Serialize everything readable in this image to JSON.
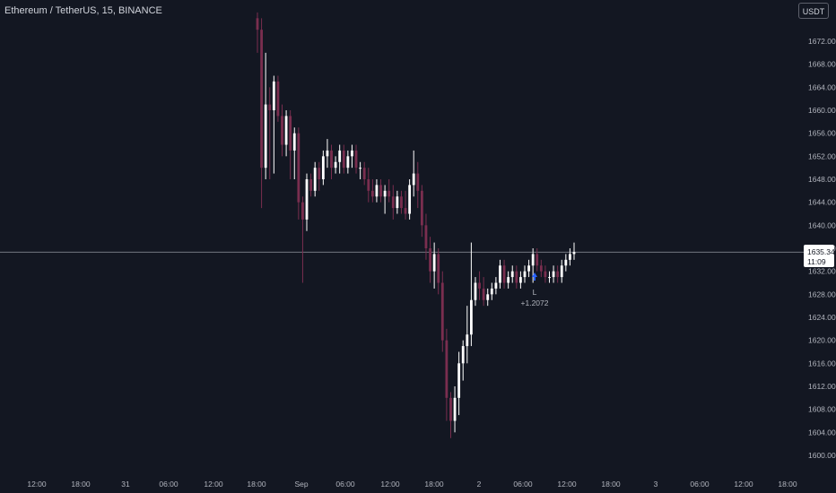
{
  "header": {
    "symbol_title": "Ethereum / TetherUS, 15, BINANCE",
    "currency_button": "USDT"
  },
  "price_axis": {
    "ticks": [
      1672,
      1668,
      1664,
      1660,
      1656,
      1652,
      1648,
      1644,
      1640,
      1636,
      1632,
      1628,
      1624,
      1620,
      1616,
      1612,
      1608,
      1604,
      1600
    ],
    "tick_labels": [
      "1672.00",
      "1668.00",
      "1664.00",
      "1660.00",
      "1656.00",
      "1652.00",
      "1648.00",
      "1644.00",
      "1640.00",
      "1636.00",
      "1632.00",
      "1628.00",
      "1624.00",
      "1620.00",
      "1616.00",
      "1612.00",
      "1608.00",
      "1604.00",
      "1600.00"
    ],
    "current_price_label": "1635.34",
    "countdown_label": "11:09"
  },
  "time_axis": {
    "labels": [
      "12:00",
      "18:00",
      "31",
      "06:00",
      "12:00",
      "18:00",
      "Sep",
      "06:00",
      "12:00",
      "18:00",
      "2",
      "06:00",
      "12:00",
      "18:00",
      "3",
      "06:00",
      "12:00",
      "18:00"
    ]
  },
  "trade_marker": {
    "label": "L",
    "pnl": "+1.2072"
  },
  "colors": {
    "background": "#131722",
    "up_candle": "#ffffff",
    "down_candle": "#7a2e4f",
    "axis_text": "#b2b5be",
    "current_price_line": "#9598a1",
    "trade_arrow": "#2962ff"
  },
  "chart_data": {
    "type": "candlestick",
    "title": "Ethereum / TetherUS, 15, BINANCE",
    "ylim": [
      1599,
      1676
    ],
    "current_price": 1635.34,
    "candles": [
      {
        "o": 1676,
        "h": 1677,
        "l": 1670,
        "c": 1674
      },
      {
        "o": 1674,
        "h": 1676,
        "l": 1643,
        "c": 1650
      },
      {
        "o": 1650,
        "h": 1670,
        "l": 1648,
        "c": 1661
      },
      {
        "o": 1661,
        "h": 1664,
        "l": 1648,
        "c": 1660
      },
      {
        "o": 1660,
        "h": 1666,
        "l": 1649,
        "c": 1665
      },
      {
        "o": 1665,
        "h": 1666,
        "l": 1658,
        "c": 1659
      },
      {
        "o": 1659,
        "h": 1661,
        "l": 1652,
        "c": 1654
      },
      {
        "o": 1654,
        "h": 1660,
        "l": 1652,
        "c": 1659
      },
      {
        "o": 1659,
        "h": 1660,
        "l": 1648,
        "c": 1653
      },
      {
        "o": 1653,
        "h": 1657,
        "l": 1648,
        "c": 1656
      },
      {
        "o": 1656,
        "h": 1657,
        "l": 1641,
        "c": 1644
      },
      {
        "o": 1644,
        "h": 1645,
        "l": 1630,
        "c": 1641
      },
      {
        "o": 1641,
        "h": 1649,
        "l": 1639,
        "c": 1648
      },
      {
        "o": 1648,
        "h": 1649,
        "l": 1645,
        "c": 1646
      },
      {
        "o": 1646,
        "h": 1651,
        "l": 1645,
        "c": 1650
      },
      {
        "o": 1650,
        "h": 1651,
        "l": 1646,
        "c": 1648
      },
      {
        "o": 1648,
        "h": 1653,
        "l": 1647,
        "c": 1652
      },
      {
        "o": 1652,
        "h": 1655,
        "l": 1650,
        "c": 1653
      },
      {
        "o": 1653,
        "h": 1654,
        "l": 1648,
        "c": 1650
      },
      {
        "o": 1650,
        "h": 1652,
        "l": 1649,
        "c": 1651
      },
      {
        "o": 1651,
        "h": 1654,
        "l": 1649,
        "c": 1653
      },
      {
        "o": 1653,
        "h": 1654,
        "l": 1649,
        "c": 1650
      },
      {
        "o": 1650,
        "h": 1653,
        "l": 1649,
        "c": 1652
      },
      {
        "o": 1652,
        "h": 1654,
        "l": 1650,
        "c": 1653
      },
      {
        "o": 1653,
        "h": 1654,
        "l": 1649,
        "c": 1650
      },
      {
        "o": 1650,
        "h": 1651,
        "l": 1648,
        "c": 1650
      },
      {
        "o": 1650,
        "h": 1651,
        "l": 1647,
        "c": 1648
      },
      {
        "o": 1648,
        "h": 1650,
        "l": 1644,
        "c": 1646
      },
      {
        "o": 1646,
        "h": 1648,
        "l": 1644,
        "c": 1645
      },
      {
        "o": 1645,
        "h": 1648,
        "l": 1644,
        "c": 1647
      },
      {
        "o": 1647,
        "h": 1648,
        "l": 1644,
        "c": 1645
      },
      {
        "o": 1645,
        "h": 1647,
        "l": 1642,
        "c": 1646
      },
      {
        "o": 1646,
        "h": 1648,
        "l": 1644,
        "c": 1645
      },
      {
        "o": 1645,
        "h": 1647,
        "l": 1641,
        "c": 1643
      },
      {
        "o": 1643,
        "h": 1646,
        "l": 1642,
        "c": 1645
      },
      {
        "o": 1645,
        "h": 1646,
        "l": 1642,
        "c": 1643
      },
      {
        "o": 1643,
        "h": 1646,
        "l": 1641,
        "c": 1642
      },
      {
        "o": 1642,
        "h": 1648,
        "l": 1641,
        "c": 1647
      },
      {
        "o": 1647,
        "h": 1653,
        "l": 1645,
        "c": 1649
      },
      {
        "o": 1649,
        "h": 1651,
        "l": 1643,
        "c": 1646
      },
      {
        "o": 1646,
        "h": 1647,
        "l": 1638,
        "c": 1640
      },
      {
        "o": 1640,
        "h": 1642,
        "l": 1634,
        "c": 1636
      },
      {
        "o": 1636,
        "h": 1638,
        "l": 1630,
        "c": 1632
      },
      {
        "o": 1632,
        "h": 1637,
        "l": 1629,
        "c": 1635
      },
      {
        "o": 1635,
        "h": 1636,
        "l": 1628,
        "c": 1630
      },
      {
        "o": 1630,
        "h": 1632,
        "l": 1618,
        "c": 1620
      },
      {
        "o": 1620,
        "h": 1622,
        "l": 1606,
        "c": 1610
      },
      {
        "o": 1610,
        "h": 1611,
        "l": 1603,
        "c": 1606
      },
      {
        "o": 1606,
        "h": 1612,
        "l": 1604,
        "c": 1610
      },
      {
        "o": 1610,
        "h": 1618,
        "l": 1607,
        "c": 1616
      },
      {
        "o": 1616,
        "h": 1620,
        "l": 1613,
        "c": 1619
      },
      {
        "o": 1619,
        "h": 1626,
        "l": 1616,
        "c": 1621
      },
      {
        "o": 1621,
        "h": 1637,
        "l": 1619,
        "c": 1627
      },
      {
        "o": 1627,
        "h": 1631,
        "l": 1626,
        "c": 1630
      },
      {
        "o": 1630,
        "h": 1632,
        "l": 1627,
        "c": 1629
      },
      {
        "o": 1629,
        "h": 1631,
        "l": 1626,
        "c": 1627
      },
      {
        "o": 1627,
        "h": 1629,
        "l": 1626,
        "c": 1628
      },
      {
        "o": 1628,
        "h": 1630,
        "l": 1627,
        "c": 1629
      },
      {
        "o": 1629,
        "h": 1631,
        "l": 1628,
        "c": 1630
      },
      {
        "o": 1630,
        "h": 1634,
        "l": 1629,
        "c": 1633
      },
      {
        "o": 1633,
        "h": 1634,
        "l": 1629,
        "c": 1630
      },
      {
        "o": 1630,
        "h": 1632,
        "l": 1629,
        "c": 1631
      },
      {
        "o": 1631,
        "h": 1633,
        "l": 1630,
        "c": 1632
      },
      {
        "o": 1632,
        "h": 1633,
        "l": 1629,
        "c": 1630
      },
      {
        "o": 1630,
        "h": 1632,
        "l": 1629,
        "c": 1631
      },
      {
        "o": 1631,
        "h": 1633,
        "l": 1630,
        "c": 1632
      },
      {
        "o": 1632,
        "h": 1634,
        "l": 1631,
        "c": 1633
      },
      {
        "o": 1633,
        "h": 1636,
        "l": 1630,
        "c": 1635
      },
      {
        "o": 1635,
        "h": 1636,
        "l": 1632,
        "c": 1633
      },
      {
        "o": 1633,
        "h": 1634,
        "l": 1631,
        "c": 1632
      },
      {
        "o": 1632,
        "h": 1633,
        "l": 1630,
        "c": 1631
      },
      {
        "o": 1631,
        "h": 1632,
        "l": 1630,
        "c": 1631
      },
      {
        "o": 1631,
        "h": 1633,
        "l": 1630,
        "c": 1632
      },
      {
        "o": 1632,
        "h": 1633,
        "l": 1630,
        "c": 1631
      },
      {
        "o": 1631,
        "h": 1634,
        "l": 1630,
        "c": 1633
      },
      {
        "o": 1633,
        "h": 1635,
        "l": 1632,
        "c": 1634
      },
      {
        "o": 1634,
        "h": 1636,
        "l": 1633,
        "c": 1635
      },
      {
        "o": 1635,
        "h": 1637,
        "l": 1634,
        "c": 1635.34
      }
    ]
  }
}
